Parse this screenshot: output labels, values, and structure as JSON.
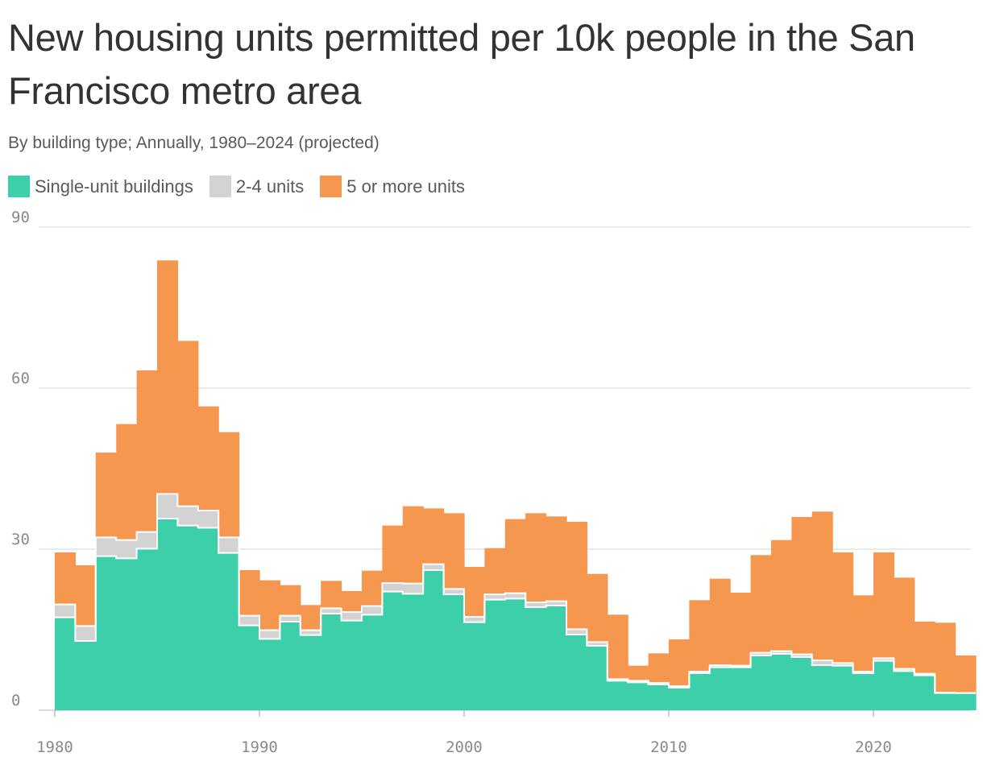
{
  "title": "New housing units permitted per 10k people in the San Francisco metro area",
  "subtitle": "By building type; Annually, 1980–2024 (projected)",
  "legend": [
    {
      "label": "Single-unit buildings",
      "color": "#3dcfa9"
    },
    {
      "label": "2-4 units",
      "color": "#d3d3d3"
    },
    {
      "label": "5 or more units",
      "color": "#f5974f"
    }
  ],
  "chart_data": {
    "type": "bar",
    "stacked": true,
    "style": "step",
    "x": [
      1980,
      1981,
      1982,
      1983,
      1984,
      1985,
      1986,
      1987,
      1988,
      1989,
      1990,
      1991,
      1992,
      1993,
      1994,
      1995,
      1996,
      1997,
      1998,
      1999,
      2000,
      2001,
      2002,
      2003,
      2004,
      2005,
      2006,
      2007,
      2008,
      2009,
      2010,
      2011,
      2012,
      2013,
      2014,
      2015,
      2016,
      2017,
      2018,
      2019,
      2020,
      2021,
      2022,
      2023,
      2024
    ],
    "series": [
      {
        "name": "Single-unit buildings",
        "color": "#3dcfa9",
        "values": [
          17.3,
          12.9,
          28.7,
          28.3,
          30.1,
          35.7,
          34.4,
          34.0,
          29.3,
          15.8,
          13.3,
          16.5,
          14.0,
          18.0,
          16.7,
          17.8,
          22.1,
          21.7,
          26.1,
          21.6,
          16.4,
          20.6,
          20.8,
          19.2,
          19.5,
          14.1,
          12.0,
          5.5,
          5.2,
          4.8,
          4.2,
          6.9,
          8.0,
          8.0,
          10.2,
          10.5,
          9.9,
          8.4,
          8.3,
          6.9,
          9.2,
          7.3,
          6.5,
          3.2,
          3.2
        ]
      },
      {
        "name": "2-4 units",
        "color": "#d3d3d3",
        "values": [
          2.4,
          2.8,
          3.5,
          3.4,
          3.1,
          4.6,
          3.6,
          3.2,
          2.9,
          1.8,
          1.6,
          1.1,
          0.9,
          1.0,
          1.6,
          1.6,
          1.6,
          1.9,
          1.1,
          1.0,
          1.0,
          1.0,
          1.0,
          0.9,
          0.8,
          1.0,
          0.7,
          0.3,
          0.3,
          0.3,
          0.3,
          0.3,
          0.4,
          0.3,
          0.5,
          0.5,
          0.5,
          0.9,
          0.5,
          0.3,
          0.5,
          0.4,
          0.3,
          0.1,
          0.0
        ]
      },
      {
        "name": "5 or more units",
        "color": "#f5974f",
        "values": [
          9.7,
          11.3,
          15.8,
          21.6,
          30.1,
          43.5,
          30.8,
          19.4,
          19.6,
          8.5,
          9.3,
          5.7,
          4.7,
          5.1,
          3.9,
          6.6,
          10.7,
          14.4,
          10.4,
          14.1,
          9.3,
          8.6,
          13.8,
          16.6,
          15.8,
          20.0,
          12.7,
          12.0,
          2.8,
          5.5,
          8.7,
          13.3,
          16.1,
          13.6,
          18.2,
          20.7,
          25.6,
          27.7,
          20.6,
          14.2,
          19.7,
          17.0,
          9.7,
          13.0,
          7.0
        ]
      }
    ],
    "x_ticks": [
      1980,
      1990,
      2000,
      2010,
      2020
    ],
    "y_ticks": [
      0,
      30,
      60,
      90
    ],
    "xlim": [
      1980,
      2025
    ],
    "ylim": [
      0,
      90
    ],
    "grid": true,
    "legend_position": "top-left"
  }
}
